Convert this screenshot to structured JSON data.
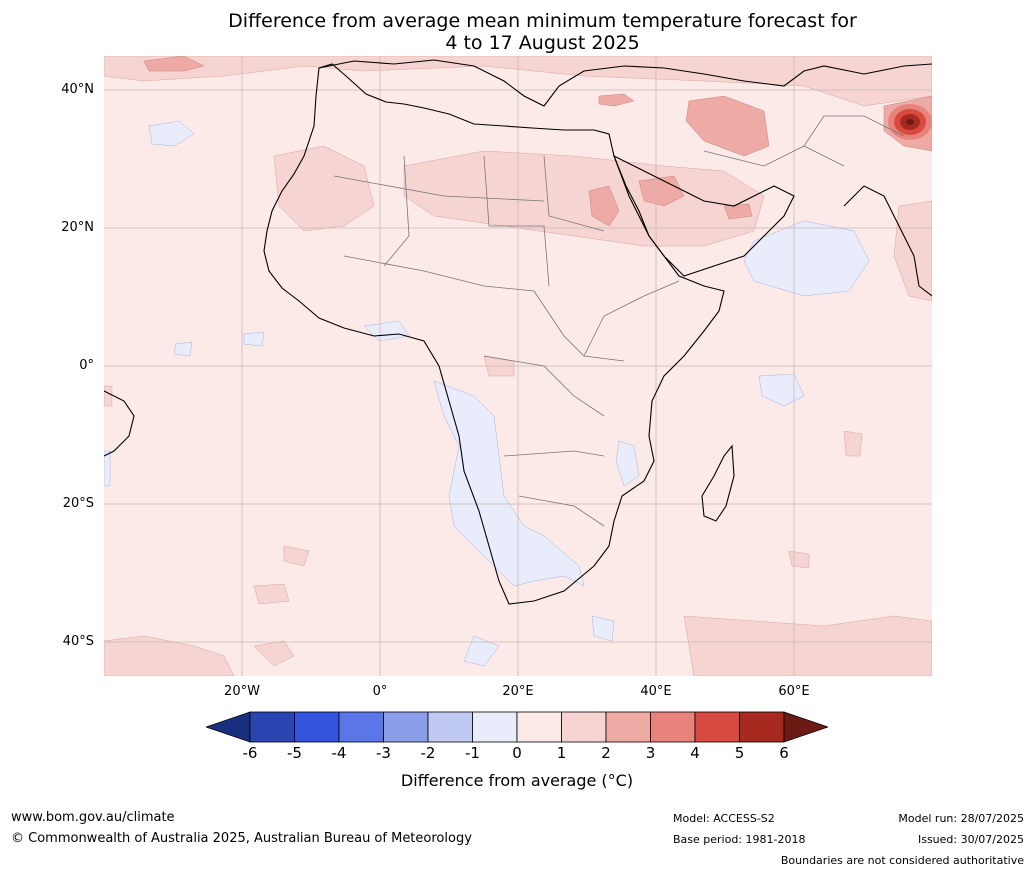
{
  "map": {
    "title_line1": "Difference from average mean minimum temperature forecast for",
    "title_line2": "4 to 17 August 2025",
    "lat_labels": [
      "40°N",
      "20°N",
      "0°",
      "20°S",
      "40°S"
    ],
    "lon_labels": [
      "20°W",
      "0°",
      "20°E",
      "40°E",
      "60°E"
    ],
    "region": "Africa"
  },
  "colorbar": {
    "label": "Difference from average (°C)",
    "ticks": [
      "-6",
      "-5",
      "-4",
      "-3",
      "-2",
      "-1",
      "0",
      "1",
      "2",
      "3",
      "4",
      "5",
      "6"
    ],
    "colors": [
      "#1a2f7f",
      "#2a45b0",
      "#3454e0",
      "#5b76e6",
      "#8a9de9",
      "#c0c9f2",
      "#e8ecfb",
      "#fbeae8",
      "#f6d4d1",
      "#eeaaa5",
      "#e8837c",
      "#d84a40",
      "#a8291f",
      "#6b1a14"
    ]
  },
  "footer": {
    "website": "www.bom.gov.au/climate",
    "copyright": "© Commonwealth of Australia 2025, Australian Bureau of Meteorology",
    "model": "Model: ACCESS-S2",
    "base_period": "Base period: 1981-2018",
    "model_run": "Model run: 28/07/2025",
    "issued": "Issued: 30/07/2025",
    "disclaimer": "Boundaries are not considered authoritative"
  }
}
